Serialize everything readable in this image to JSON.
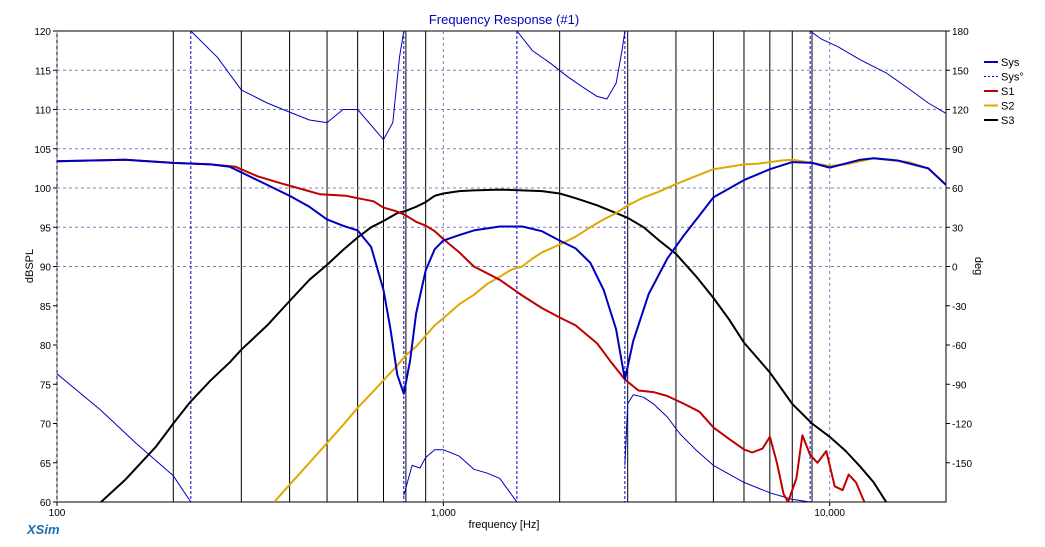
{
  "chart_data": {
    "type": "line",
    "title": "Frequency Response (#1)",
    "xlabel": "frequency [Hz]",
    "ylabel": "dBSPL",
    "y2label": "deg",
    "xscale": "log",
    "xlim": [
      100,
      20000
    ],
    "ylim": [
      60,
      120
    ],
    "y2lim": [
      -180,
      180
    ],
    "x_ticks": [
      {
        "value": 100,
        "label": "100"
      },
      {
        "value": 1000,
        "label": "1,000"
      },
      {
        "value": 10000,
        "label": "10,000"
      }
    ],
    "y_ticks": [
      60,
      65,
      70,
      75,
      80,
      85,
      90,
      95,
      100,
      105,
      110,
      115,
      120
    ],
    "y2_ticks": [
      -150,
      -120,
      -90,
      -60,
      -30,
      0,
      30,
      60,
      90,
      120,
      150,
      180
    ],
    "grid_dashed_x": [
      100,
      1000,
      10000
    ],
    "grid_solid_x": [
      200,
      300,
      400,
      500,
      600,
      700,
      800,
      900,
      2000,
      3000,
      4000,
      5000,
      6000,
      7000,
      8000,
      9000
    ],
    "grid_dashed_y": [
      0,
      30,
      60,
      90,
      120,
      150
    ],
    "vertical_markers_x": [
      222,
      790,
      1550,
      2950,
      8900
    ],
    "legend_position": "top-right",
    "series": [
      {
        "name": "Sys",
        "color": "#0000c0",
        "style": "solid",
        "axis": "left",
        "x": [
          100,
          150,
          200,
          250,
          280,
          300,
          350,
          400,
          450,
          500,
          550,
          600,
          650,
          700,
          730,
          760,
          790,
          820,
          850,
          900,
          950,
          1000,
          1100,
          1200,
          1400,
          1600,
          1800,
          2000,
          2200,
          2400,
          2600,
          2800,
          2950,
          3100,
          3400,
          3800,
          4200,
          4600,
          5000,
          6000,
          7000,
          8000,
          9000,
          10000,
          12000,
          13000,
          15000,
          18000,
          20000
        ],
        "y": [
          103.4,
          103.6,
          103.2,
          103.0,
          102.7,
          102.0,
          100.4,
          99.0,
          97.6,
          96.0,
          95.2,
          94.6,
          92.5,
          87.0,
          82.0,
          76.2,
          73.8,
          78.0,
          84.0,
          89.5,
          92.2,
          93.3,
          94.0,
          94.6,
          95.1,
          95.1,
          94.5,
          93.3,
          92.3,
          90.5,
          87.0,
          82.0,
          75.6,
          80.5,
          86.5,
          91.0,
          94.0,
          96.5,
          98.8,
          101.0,
          102.4,
          103.3,
          103.2,
          102.6,
          103.6,
          103.8,
          103.5,
          102.5,
          100.4
        ]
      },
      {
        "name": "Sys°",
        "color": "#0000c0",
        "style": "dashed",
        "axis": "right",
        "segments": [
          {
            "x": [
              100,
              130,
              160,
              200,
              222
            ],
            "y": [
              -82,
              -110,
              -135,
              -160,
              -180
            ]
          },
          {
            "x": [
              222,
              260,
              300,
              350,
              400,
              450,
              500,
              550,
              600,
              650,
              700,
              740,
              770,
              790
            ],
            "y": [
              180,
              160,
              135,
              125,
              118,
              112,
              110,
              120,
              120,
              108,
              97,
              110,
              160,
              180
            ]
          },
          {
            "x": [
              790,
              830,
              870,
              900,
              950,
              1000,
              1100,
              1200,
              1300,
              1400,
              1550
            ],
            "y": [
              -175,
              -152,
              -154,
              -146,
              -140,
              -140,
              -145,
              -155,
              -158,
              -162,
              -180
            ]
          },
          {
            "x": [
              1550,
              1700,
              1900,
              2100,
              2300,
              2500,
              2650,
              2800,
              2900,
              2950
            ],
            "y": [
              180,
              165,
              155,
              145,
              137,
              130,
              128,
              140,
              165,
              180
            ]
          },
          {
            "x": [
              2950,
              3000,
              3100,
              3300,
              3500,
              3800,
              4100,
              4500,
              5000,
              6000,
              7000,
              8000,
              8900
            ],
            "y": [
              -152,
              -105,
              -98,
              -100,
              -105,
              -115,
              -128,
              -140,
              -152,
              -165,
              -173,
              -178,
              -180
            ]
          },
          {
            "x": [
              8900,
              9500,
              10500,
              12000,
              14000,
              16000,
              18000,
              20000
            ],
            "y": [
              180,
              174,
              168,
              158,
              148,
              136,
              125,
              117
            ]
          }
        ]
      },
      {
        "name": "S1",
        "color": "#c00000",
        "style": "solid",
        "axis": "left",
        "x": [
          100,
          150,
          200,
          250,
          290,
          330,
          380,
          420,
          480,
          560,
          600,
          660,
          700,
          760,
          800,
          850,
          900,
          950,
          1000,
          1100,
          1200,
          1400,
          1600,
          1800,
          2000,
          2200,
          2500,
          2700,
          2950,
          3200,
          3500,
          3800,
          4200,
          4600,
          5000,
          5500,
          6000,
          6300,
          6700,
          7000,
          7300,
          7600,
          7800,
          8200,
          8500,
          8900,
          9300,
          9800,
          10300,
          10800,
          11200,
          11700,
          12300
        ],
        "y": [
          103.4,
          103.6,
          103.2,
          103.0,
          102.7,
          101.5,
          100.6,
          100.0,
          99.2,
          99.0,
          98.7,
          98.3,
          97.5,
          97.0,
          96.5,
          95.7,
          95.2,
          94.5,
          93.5,
          91.8,
          90.0,
          88.3,
          86.3,
          84.7,
          83.5,
          82.5,
          80.2,
          78.0,
          75.6,
          74.2,
          74.0,
          73.5,
          72.5,
          71.5,
          69.5,
          68.0,
          66.7,
          66.3,
          66.8,
          68.3,
          65.0,
          61.0,
          60.0,
          63.0,
          68.5,
          66.0,
          65.0,
          66.5,
          62.0,
          61.5,
          63.5,
          62.5,
          60.0
        ]
      },
      {
        "name": "S2",
        "color": "#e0a800",
        "style": "solid",
        "axis": "left",
        "x": [
          365,
          400,
          450,
          500,
          550,
          600,
          650,
          700,
          760,
          800,
          850,
          900,
          950,
          1000,
          1100,
          1200,
          1300,
          1400,
          1500,
          1600,
          1700,
          1800,
          2000,
          2200,
          2400,
          2600,
          2800,
          3000,
          3300,
          3600,
          4000,
          4500,
          5000,
          5500,
          6000,
          6500,
          7000,
          7500,
          8000,
          9000,
          10000,
          11000,
          12000,
          13000,
          14000,
          16000,
          18000,
          20000
        ],
        "y": [
          60.0,
          62.2,
          65.0,
          67.5,
          69.8,
          72.0,
          73.8,
          75.5,
          77.4,
          78.7,
          79.8,
          81.2,
          82.5,
          83.4,
          85.2,
          86.4,
          87.8,
          88.7,
          89.6,
          90.0,
          91.0,
          91.8,
          92.8,
          93.8,
          95.0,
          96.0,
          96.8,
          97.8,
          98.8,
          99.5,
          100.5,
          101.5,
          102.4,
          102.7,
          103.0,
          103.1,
          103.3,
          103.5,
          103.6,
          103.2,
          102.8,
          103.0,
          103.4,
          103.8,
          103.6,
          103.3,
          102.5,
          100.4
        ]
      },
      {
        "name": "S3",
        "color": "#000000",
        "style": "solid",
        "axis": "left",
        "x": [
          130,
          150,
          180,
          200,
          220,
          250,
          280,
          300,
          350,
          400,
          450,
          500,
          550,
          600,
          650,
          700,
          760,
          800,
          850,
          900,
          950,
          1000,
          1100,
          1200,
          1400,
          1600,
          1800,
          2000,
          2200,
          2500,
          2800,
          3000,
          3300,
          3600,
          4000,
          4500,
          5000,
          5500,
          6000,
          7000,
          8000,
          9000,
          10000,
          11000,
          12000,
          13000,
          14000
        ],
        "y": [
          60.0,
          62.8,
          67.0,
          70.0,
          72.6,
          75.5,
          77.8,
          79.4,
          82.5,
          85.6,
          88.3,
          90.2,
          92.1,
          93.7,
          95.0,
          95.8,
          96.8,
          97.1,
          97.6,
          98.2,
          99.0,
          99.3,
          99.6,
          99.7,
          99.8,
          99.7,
          99.6,
          99.3,
          98.7,
          97.8,
          96.8,
          96.2,
          95.0,
          93.4,
          91.6,
          88.8,
          86.0,
          83.2,
          80.3,
          76.5,
          72.5,
          70.0,
          68.3,
          66.5,
          64.5,
          62.5,
          60.0
        ]
      }
    ]
  },
  "footer": {
    "logo": "XSim"
  }
}
